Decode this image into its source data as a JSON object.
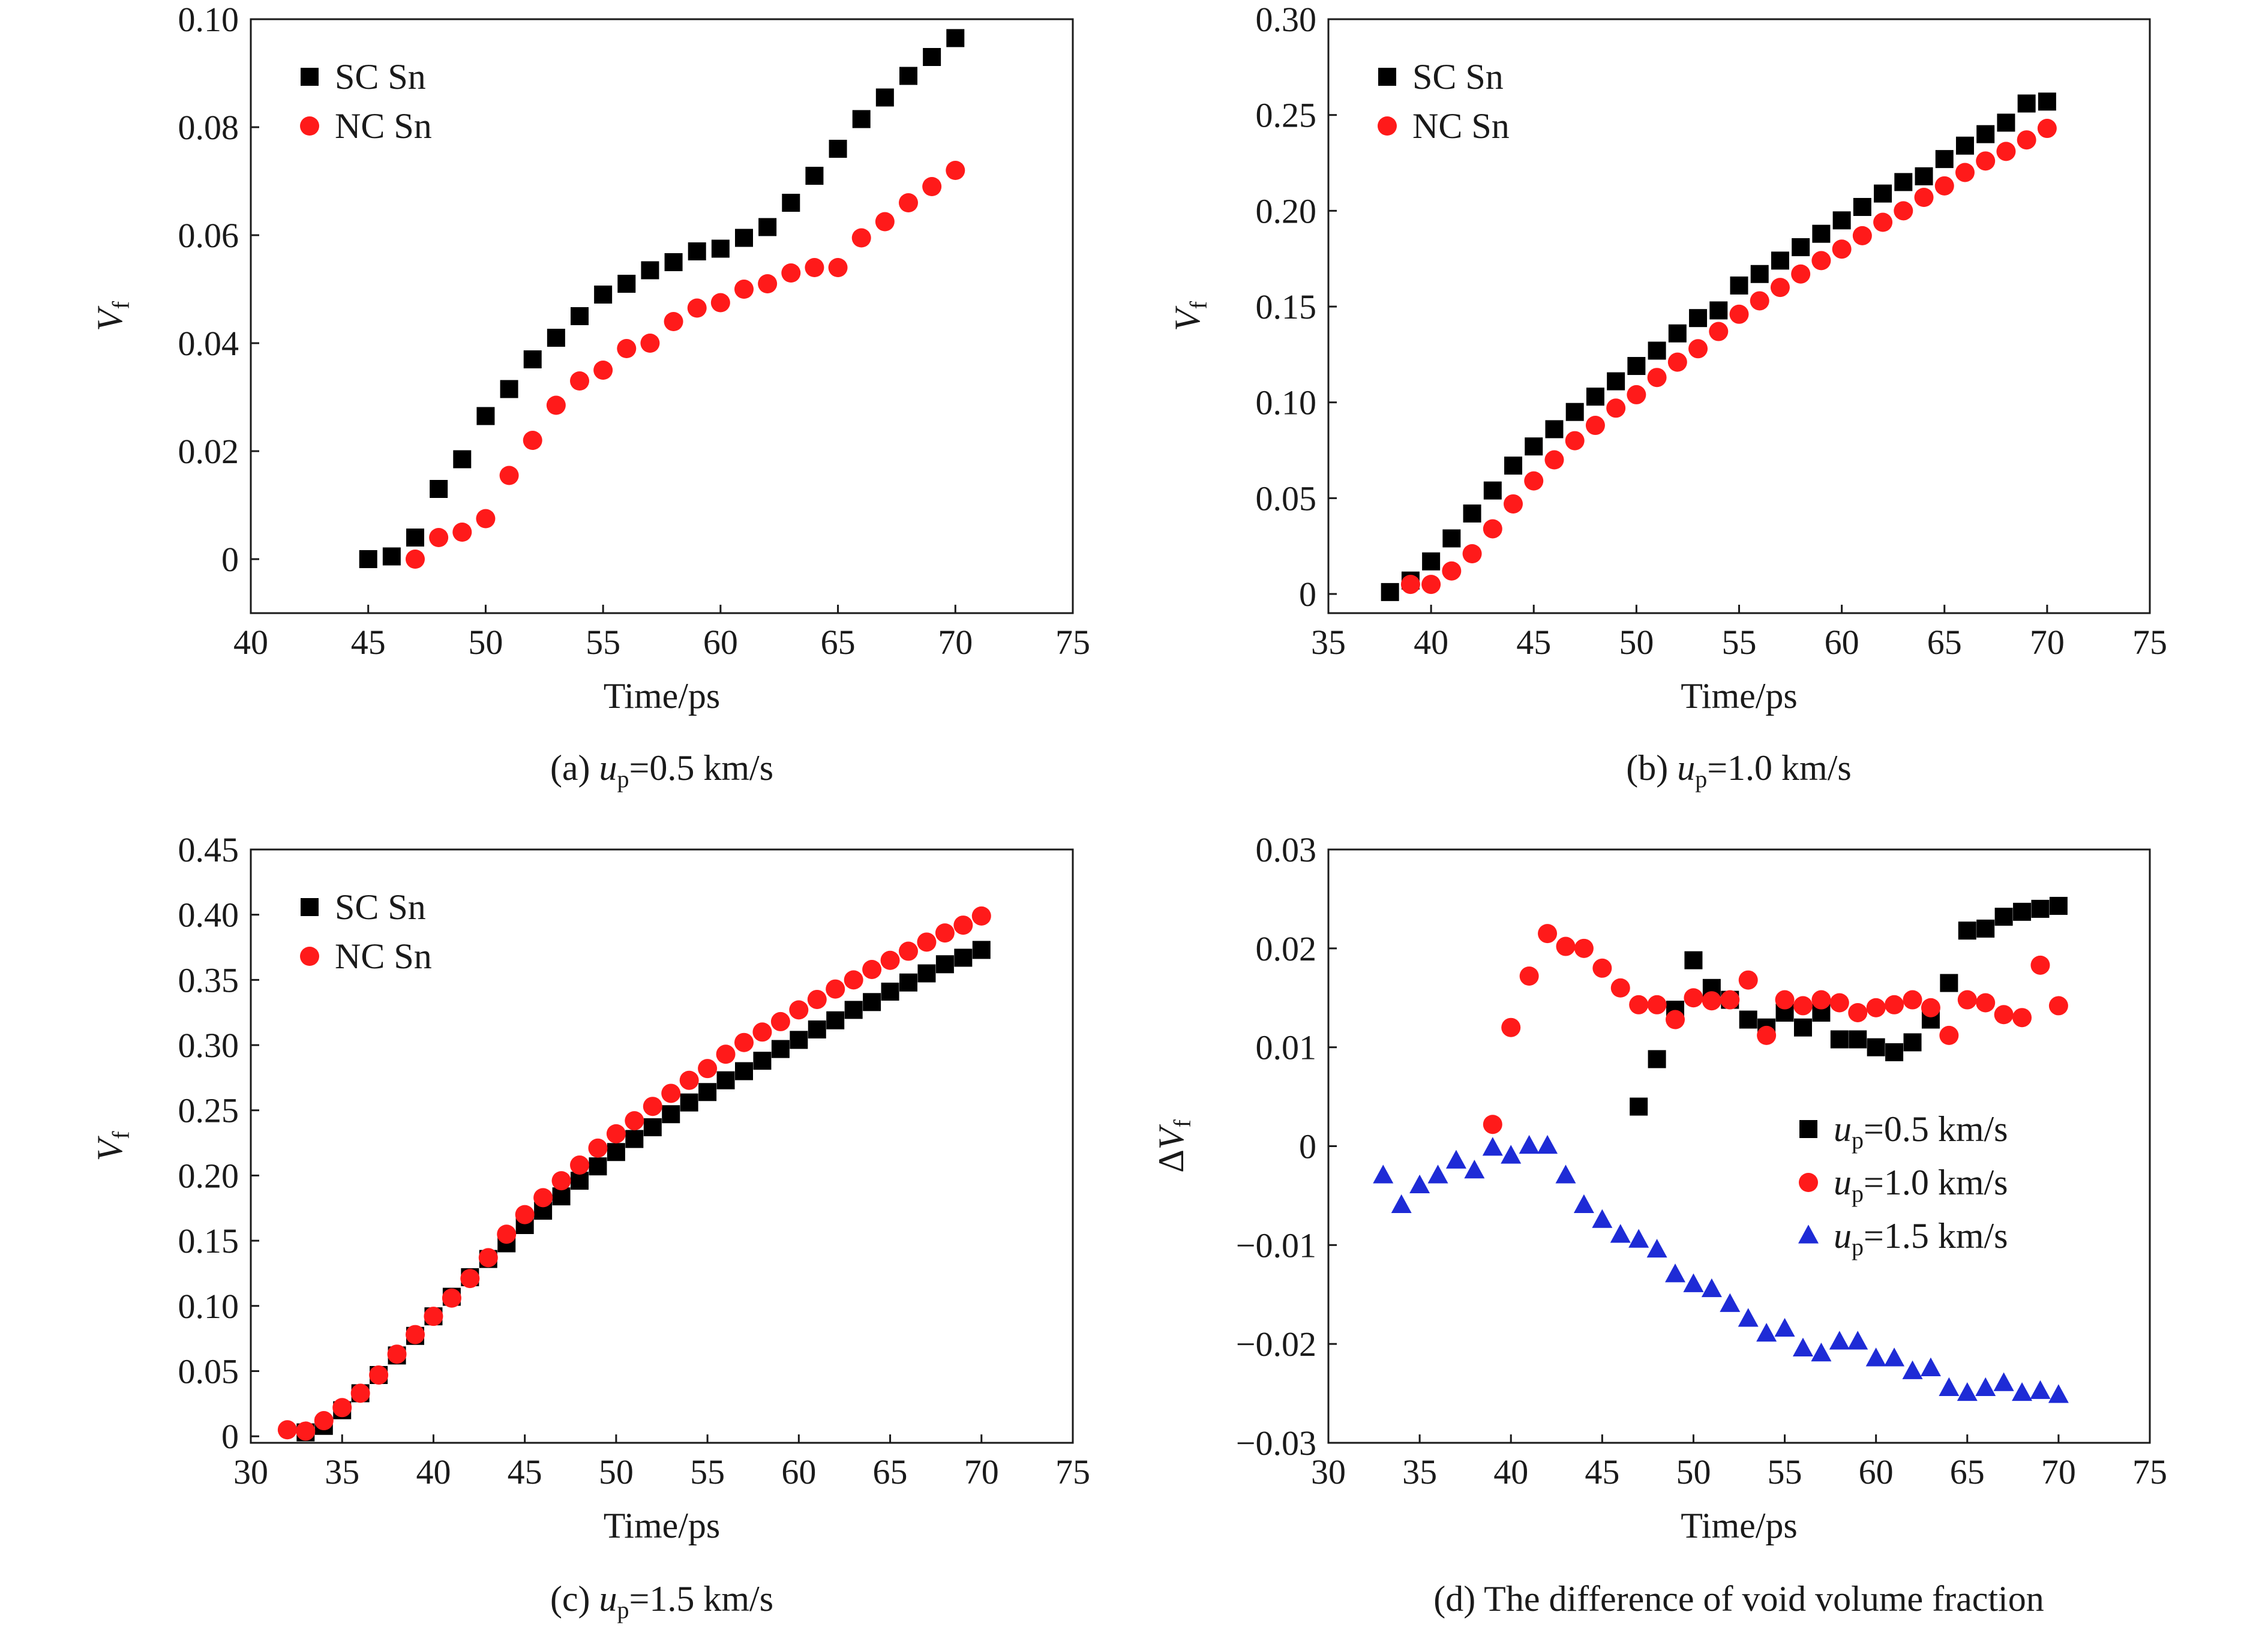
{
  "colors": {
    "SC": "#000000",
    "NC": "#ff1a1a",
    "blue": "#1e2bd6",
    "axis": "#1a1a1a"
  },
  "charts": [
    {
      "panel": "a",
      "caption": {
        "prefix": "(a) ",
        "italic": "u",
        "sub": "p",
        "rest": "=0.5 km/s"
      },
      "xlabel": "Time/ps",
      "ylabel": {
        "main": "V",
        "sub": "f",
        "delta": false
      },
      "xlim": [
        40,
        75
      ],
      "ylim": [
        -0.01,
        0.1
      ],
      "xticks": [
        40,
        45,
        50,
        55,
        60,
        65,
        70,
        75
      ],
      "yticks": [
        0,
        0.02,
        0.04,
        0.06,
        0.08,
        0.1
      ],
      "ytick_labels": [
        "0",
        "0.02",
        "0.04",
        "0.06",
        "0.08",
        "0.10"
      ],
      "legend": {
        "placement": "top-left"
      },
      "series": [
        {
          "name": "SC Sn",
          "marker": "square",
          "color": "#000000",
          "x": [
            45,
            46,
            47,
            48,
            49,
            50,
            51,
            52,
            53,
            54,
            55,
            56,
            57,
            58,
            59,
            60,
            61,
            62,
            63,
            64,
            65,
            66,
            67,
            68,
            69,
            70
          ],
          "y": [
            0.0,
            0.0005,
            0.004,
            0.013,
            0.0185,
            0.0265,
            0.0315,
            0.037,
            0.041,
            0.045,
            0.049,
            0.051,
            0.0535,
            0.055,
            0.057,
            0.0575,
            0.0595,
            0.0615,
            0.066,
            0.071,
            0.076,
            0.0815,
            0.0855,
            0.0895,
            0.093,
            0.0965
          ]
        },
        {
          "name": "NC Sn",
          "marker": "circle",
          "color": "#ff1a1a",
          "x": [
            47,
            48,
            49,
            50,
            51,
            52,
            53,
            54,
            55,
            56,
            57,
            58,
            59,
            60,
            61,
            62,
            63,
            64,
            65,
            66,
            67,
            68,
            69,
            70
          ],
          "y": [
            0.0,
            0.004,
            0.005,
            0.0075,
            0.0155,
            0.022,
            0.0285,
            0.033,
            0.035,
            0.039,
            0.04,
            0.044,
            0.0465,
            0.0475,
            0.05,
            0.051,
            0.053,
            0.054,
            0.054,
            0.0595,
            0.0625,
            0.066,
            0.069,
            0.072
          ]
        }
      ]
    },
    {
      "panel": "b",
      "caption": {
        "prefix": "(b) ",
        "italic": "u",
        "sub": "p",
        "rest": "=1.0 km/s"
      },
      "xlabel": "Time/ps",
      "ylabel": {
        "main": "V",
        "sub": "f",
        "delta": false
      },
      "xlim": [
        35,
        75
      ],
      "ylim": [
        -0.01,
        0.3
      ],
      "xticks": [
        35,
        40,
        45,
        50,
        55,
        60,
        65,
        70,
        75
      ],
      "yticks": [
        0,
        0.05,
        0.1,
        0.15,
        0.2,
        0.25,
        0.3
      ],
      "ytick_labels": [
        "0",
        "0.05",
        "0.10",
        "0.15",
        "0.20",
        "0.25",
        "0.30"
      ],
      "legend": {
        "placement": "top-left"
      },
      "series": [
        {
          "name": "SC Sn",
          "marker": "square",
          "color": "#000000",
          "x": [
            38,
            39,
            40,
            41,
            42,
            43,
            44,
            45,
            46,
            47,
            48,
            49,
            50,
            51,
            52,
            53,
            54,
            55,
            56,
            57,
            58,
            59,
            60,
            61,
            62,
            63,
            64,
            65,
            66,
            67,
            68,
            69,
            70
          ],
          "y": [
            0.001,
            0.007,
            0.017,
            0.029,
            0.042,
            0.054,
            0.067,
            0.077,
            0.086,
            0.095,
            0.103,
            0.111,
            0.119,
            0.127,
            0.136,
            0.144,
            0.148,
            0.161,
            0.167,
            0.174,
            0.181,
            0.188,
            0.195,
            0.202,
            0.209,
            0.215,
            0.218,
            0.227,
            0.234,
            0.24,
            0.246,
            0.256,
            0.257
          ]
        },
        {
          "name": "NC Sn",
          "marker": "circle",
          "color": "#ff1a1a",
          "x": [
            39,
            40,
            41,
            42,
            43,
            44,
            45,
            46,
            47,
            48,
            49,
            50,
            51,
            52,
            53,
            54,
            55,
            56,
            57,
            58,
            59,
            60,
            61,
            62,
            63,
            64,
            65,
            66,
            67,
            68,
            69,
            70
          ],
          "y": [
            0.005,
            0.005,
            0.012,
            0.021,
            0.034,
            0.047,
            0.059,
            0.07,
            0.08,
            0.088,
            0.097,
            0.104,
            0.113,
            0.121,
            0.128,
            0.137,
            0.146,
            0.153,
            0.16,
            0.167,
            0.174,
            0.18,
            0.187,
            0.194,
            0.2,
            0.207,
            0.213,
            0.22,
            0.226,
            0.231,
            0.237,
            0.243
          ]
        }
      ]
    },
    {
      "panel": "c",
      "caption": {
        "prefix": "(c) ",
        "italic": "u",
        "sub": "p",
        "rest": "=1.5 km/s"
      },
      "xlabel": "Time/ps",
      "ylabel": {
        "main": "V",
        "sub": "f",
        "delta": false
      },
      "xlim": [
        30,
        75
      ],
      "ylim": [
        -0.005,
        0.45
      ],
      "xticks": [
        30,
        35,
        40,
        45,
        50,
        55,
        60,
        65,
        70,
        75
      ],
      "yticks": [
        0,
        0.05,
        0.1,
        0.15,
        0.2,
        0.25,
        0.3,
        0.35,
        0.4,
        0.45
      ],
      "ytick_labels": [
        "0",
        "0.05",
        "0.10",
        "0.15",
        "0.20",
        "0.25",
        "0.30",
        "0.35",
        "0.40",
        "0.45"
      ],
      "legend": {
        "placement": "top-left"
      },
      "series": [
        {
          "name": "SC Sn",
          "marker": "square",
          "color": "#000000",
          "x": [
            33,
            34,
            35,
            36,
            37,
            38,
            39,
            40,
            41,
            42,
            43,
            44,
            45,
            46,
            47,
            48,
            49,
            50,
            51,
            52,
            53,
            54,
            55,
            56,
            57,
            58,
            59,
            60,
            61,
            62,
            63,
            64,
            65,
            66,
            67,
            68,
            69,
            70
          ],
          "y": [
            0.003,
            0.008,
            0.02,
            0.033,
            0.047,
            0.062,
            0.077,
            0.092,
            0.107,
            0.122,
            0.136,
            0.148,
            0.162,
            0.173,
            0.184,
            0.196,
            0.207,
            0.218,
            0.228,
            0.237,
            0.247,
            0.256,
            0.264,
            0.273,
            0.28,
            0.288,
            0.297,
            0.304,
            0.312,
            0.319,
            0.327,
            0.333,
            0.341,
            0.348,
            0.355,
            0.362,
            0.367,
            0.373
          ]
        },
        {
          "name": "NC Sn",
          "marker": "circle",
          "color": "#ff1a1a",
          "x": [
            32,
            33,
            34,
            35,
            36,
            37,
            38,
            39,
            40,
            41,
            42,
            43,
            44,
            45,
            46,
            47,
            48,
            49,
            50,
            51,
            52,
            53,
            54,
            55,
            56,
            57,
            58,
            59,
            60,
            61,
            62,
            63,
            64,
            65,
            66,
            67,
            68,
            69,
            70
          ],
          "y": [
            0.005,
            0.004,
            0.012,
            0.022,
            0.033,
            0.047,
            0.063,
            0.078,
            0.092,
            0.106,
            0.121,
            0.137,
            0.155,
            0.17,
            0.183,
            0.196,
            0.208,
            0.221,
            0.232,
            0.242,
            0.253,
            0.263,
            0.273,
            0.282,
            0.293,
            0.302,
            0.31,
            0.318,
            0.327,
            0.335,
            0.343,
            0.35,
            0.358,
            0.365,
            0.372,
            0.379,
            0.386,
            0.392,
            0.399
          ]
        }
      ]
    },
    {
      "panel": "d",
      "caption": {
        "prefix": "(d) The difference of void volume fraction",
        "italic": "",
        "sub": "",
        "rest": ""
      },
      "xlabel": "Time/ps",
      "ylabel": {
        "main": "V",
        "sub": "f",
        "delta": true
      },
      "xlim": [
        30,
        75
      ],
      "ylim": [
        -0.03,
        0.03
      ],
      "xticks": [
        30,
        35,
        40,
        45,
        50,
        55,
        60,
        65,
        70,
        75
      ],
      "yticks": [
        -0.03,
        -0.02,
        -0.01,
        0,
        0.01,
        0.02,
        0.03
      ],
      "ytick_labels": [
        "−0.03",
        "−0.02",
        "−0.01",
        "0",
        "0.01",
        "0.02",
        "0.03"
      ],
      "legend": {
        "placement": "middle-right"
      },
      "series": [
        {
          "name": "=0.5 km/s",
          "label_italic": "u",
          "label_sub": "p",
          "marker": "square",
          "color": "#000000",
          "x": [
            47,
            48,
            49,
            50,
            51,
            52,
            53,
            54,
            55,
            56,
            57,
            58,
            59,
            60,
            61,
            62,
            63,
            64,
            65,
            66,
            67,
            68,
            69,
            70
          ],
          "y": [
            0.004,
            0.0088,
            0.0138,
            0.0188,
            0.016,
            0.0148,
            0.0128,
            0.012,
            0.0135,
            0.012,
            0.0135,
            0.0108,
            0.0108,
            0.01,
            0.0095,
            0.0105,
            0.0128,
            0.0165,
            0.0218,
            0.022,
            0.0232,
            0.0237,
            0.024,
            0.0243
          ]
        },
        {
          "name": "=1.0 km/s",
          "label_italic": "u",
          "label_sub": "p",
          "marker": "circle",
          "color": "#ff1a1a",
          "x": [
            39,
            40,
            41,
            42,
            43,
            44,
            45,
            46,
            47,
            48,
            49,
            50,
            51,
            52,
            53,
            54,
            55,
            56,
            57,
            58,
            59,
            60,
            61,
            62,
            63,
            64,
            65,
            66,
            67,
            68,
            69,
            70
          ],
          "y": [
            0.0022,
            0.012,
            0.0172,
            0.0215,
            0.0202,
            0.02,
            0.018,
            0.016,
            0.0143,
            0.0143,
            0.0128,
            0.015,
            0.0147,
            0.0148,
            0.0168,
            0.0112,
            0.0148,
            0.0142,
            0.0148,
            0.0145,
            0.0135,
            0.014,
            0.0143,
            0.0148,
            0.014,
            0.0112,
            0.0148,
            0.0145,
            0.0133,
            0.013,
            0.0183,
            0.0142
          ]
        },
        {
          "name": "=1.5 km/s",
          "label_italic": "u",
          "label_sub": "p",
          "marker": "triangle",
          "color": "#1e2bd6",
          "x": [
            33,
            34,
            35,
            36,
            37,
            38,
            39,
            40,
            41,
            42,
            43,
            44,
            45,
            46,
            47,
            48,
            49,
            50,
            51,
            52,
            53,
            54,
            55,
            56,
            57,
            58,
            59,
            60,
            61,
            62,
            63,
            64,
            65,
            66,
            67,
            68,
            69,
            70
          ],
          "y": [
            -0.003,
            -0.006,
            -0.004,
            -0.003,
            -0.0015,
            -0.0025,
            -0.0002,
            -0.001,
            0.0,
            0.0,
            -0.003,
            -0.006,
            -0.0075,
            -0.009,
            -0.0095,
            -0.0105,
            -0.013,
            -0.014,
            -0.0145,
            -0.016,
            -0.0175,
            -0.019,
            -0.0185,
            -0.0205,
            -0.021,
            -0.0198,
            -0.0198,
            -0.0215,
            -0.0215,
            -0.0228,
            -0.0225,
            -0.0245,
            -0.025,
            -0.0245,
            -0.024,
            -0.025,
            -0.0248,
            -0.0252
          ]
        }
      ]
    }
  ]
}
